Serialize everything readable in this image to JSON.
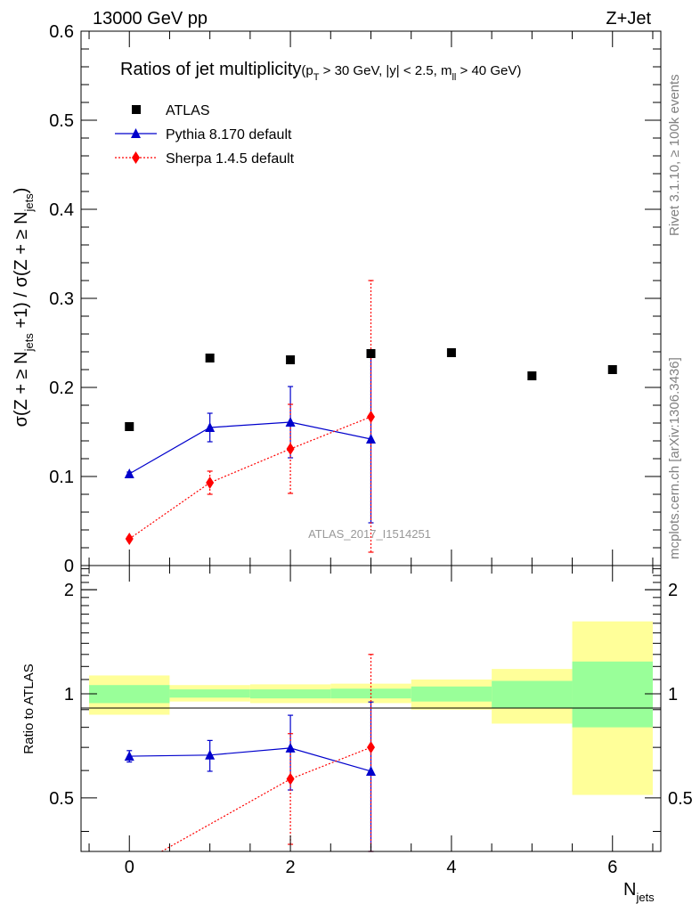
{
  "header": {
    "energy_label": "13000 GeV pp",
    "process_label": "Z+Jet"
  },
  "side_labels": {
    "rivet": "Rivet 3.1.10, ≥ 100k events",
    "source": "mcplots.cern.ch [arXiv:1306.3436]"
  },
  "colors": {
    "atlas": "#000000",
    "pythia": "#0000cc",
    "sherpa": "#ff0000",
    "band_inner": "#99ff99",
    "band_outer": "#ffff99"
  },
  "chart_data": [
    {
      "type": "scatter",
      "title": "Ratios of jet multiplicity",
      "title_cuts": "(p_T > 30 GeV, |y| < 2.5, m_ll > 40 GeV)",
      "ylabel": "σ(Z + ≥ N_jets +1) / σ(Z + ≥ N_jets)",
      "xlim": [
        -0.6,
        6.6
      ],
      "ylim": [
        0,
        0.6
      ],
      "yticks": [
        0,
        0.1,
        0.2,
        0.3,
        0.4,
        0.5,
        0.6
      ],
      "ytick_labels": [
        "0",
        "0.1",
        "0.2",
        "0.3",
        "0.4",
        "0.5",
        "0.6"
      ],
      "legend_position": "top-left",
      "watermark": "ATLAS_2017_I1514251",
      "series": [
        {
          "name": "ATLAS",
          "marker": "square",
          "x": [
            0,
            1,
            2,
            3,
            4,
            5,
            6
          ],
          "y": [
            0.156,
            0.233,
            0.231,
            0.238,
            0.239,
            0.213,
            0.22
          ]
        },
        {
          "name": "Pythia 8.170 default",
          "marker": "triangle",
          "line": "solid",
          "x": [
            0,
            1,
            2,
            3
          ],
          "y": [
            0.103,
            0.155,
            0.161,
            0.142
          ],
          "err_low": [
            0.002,
            0.016,
            0.04,
            0.094
          ],
          "err_high": [
            0.002,
            0.016,
            0.04,
            0.094
          ]
        },
        {
          "name": "Sherpa 1.4.5 default",
          "marker": "diamond",
          "line": "dotted",
          "x": [
            0,
            1,
            2,
            3
          ],
          "y": [
            0.03,
            0.093,
            0.131,
            0.167
          ],
          "err_low": [
            0.002,
            0.013,
            0.05,
            0.152
          ],
          "err_high": [
            0.002,
            0.013,
            0.05,
            0.153
          ]
        }
      ]
    },
    {
      "type": "scatter",
      "ylabel": "Ratio to ATLAS",
      "xlabel": "N_jets",
      "xlim": [
        -0.6,
        6.6
      ],
      "ylim": [
        0.35,
        2.35
      ],
      "xticks": [
        0,
        2,
        4,
        6
      ],
      "xtick_labels": [
        "0",
        "2",
        "4",
        "6"
      ],
      "yticks": [
        0.5,
        1,
        2
      ],
      "ytick_labels": [
        "0.5",
        "1",
        "2"
      ],
      "bands": {
        "bins": [
          [
            -0.5,
            0.5
          ],
          [
            0.5,
            1.5
          ],
          [
            1.5,
            2.5
          ],
          [
            2.5,
            3.5
          ],
          [
            3.5,
            4.5
          ],
          [
            4.5,
            5.5
          ],
          [
            5.5,
            6.5
          ]
        ],
        "inner_low": [
          0.94,
          0.975,
          0.97,
          0.97,
          0.95,
          0.91,
          0.8
        ],
        "inner_high": [
          1.06,
          1.03,
          1.03,
          1.035,
          1.05,
          1.09,
          1.24
        ],
        "outer_low": [
          0.87,
          0.95,
          0.94,
          0.94,
          0.9,
          0.82,
          0.51
        ],
        "outer_high": [
          1.13,
          1.06,
          1.065,
          1.07,
          1.1,
          1.18,
          1.62
        ]
      },
      "series": [
        {
          "name": "Pythia 8.170 default",
          "marker": "triangle",
          "line": "solid",
          "x": [
            0,
            1,
            2,
            3
          ],
          "y": [
            0.66,
            0.665,
            0.697,
            0.597
          ],
          "err_low": [
            0.025,
            0.068,
            0.17,
            0.35
          ],
          "err_high": [
            0.025,
            0.068,
            0.17,
            0.35
          ]
        },
        {
          "name": "Sherpa 1.4.5 default",
          "marker": "diamond",
          "line": "dotted",
          "x": [
            0.4,
            2,
            3
          ],
          "y": [
            0.3,
            0.567,
            0.7
          ],
          "err_low": [
            0,
            0.2,
            0.6
          ],
          "err_high": [
            0,
            0.2,
            0.6
          ],
          "draw_marker": [
            false,
            true,
            true
          ]
        }
      ]
    }
  ]
}
